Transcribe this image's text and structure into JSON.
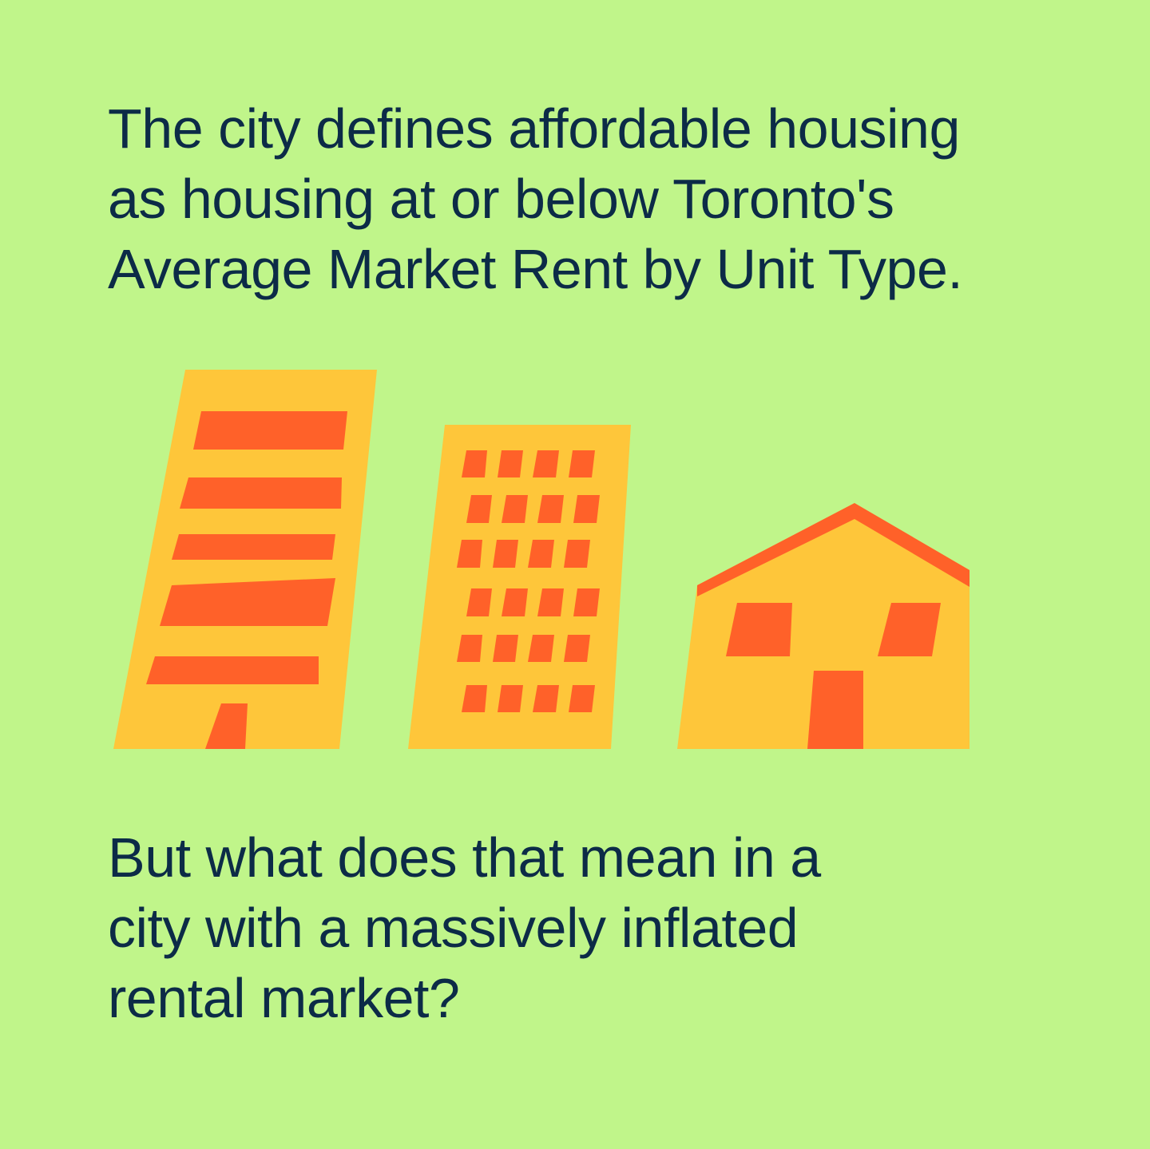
{
  "intro": {
    "lines": [
      "The city defines affordable housing",
      "as housing at or below Toronto's",
      "Average Market Rent by Unit Type."
    ]
  },
  "question": {
    "lines": [
      "But what does that mean in a",
      "city with a massively inflated",
      "rental market?"
    ]
  },
  "colors": {
    "background": "#c0f58a",
    "text": "#0c2b47",
    "building": "#fec63a",
    "accent": "#ff6129"
  }
}
